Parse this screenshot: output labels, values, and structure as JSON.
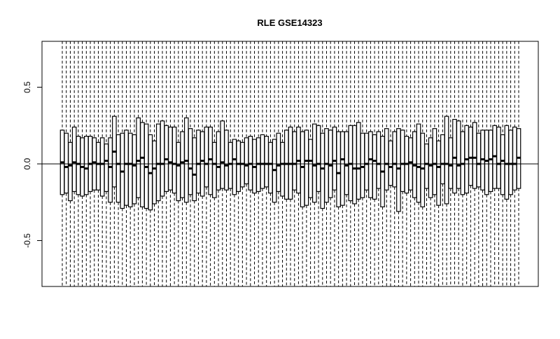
{
  "chart_data": {
    "type": "boxplot",
    "title": "RLE GSE14323",
    "xlabel": "",
    "ylabel": "",
    "ylim": [
      -0.8,
      0.8
    ],
    "yticks": [
      -0.5,
      0.0,
      0.5
    ],
    "ytick_labels": [
      "-0.5",
      "0.0",
      "0.5"
    ],
    "reference_line_y": 0,
    "whisker_ylim": [
      -0.8,
      0.8
    ],
    "n_samples": 115,
    "grid": false,
    "legend": "none",
    "colors": {
      "box": "#000000",
      "background": "#ffffff"
    },
    "median": [
      0.01,
      -0.02,
      -0.01,
      0.01,
      0.0,
      -0.02,
      -0.03,
      0.0,
      0.01,
      0.0,
      0.0,
      0.02,
      -0.02,
      0.08,
      0.0,
      -0.05,
      0.0,
      0.0,
      -0.01,
      0.02,
      0.04,
      -0.02,
      -0.06,
      -0.03,
      0.0,
      0.0,
      0.03,
      0.01,
      0.0,
      -0.01,
      0.01,
      0.02,
      -0.03,
      -0.07,
      0.0,
      0.02,
      0.0,
      0.03,
      0.0,
      -0.02,
      0.01,
      -0.01,
      0.0,
      0.03,
      0.0,
      0.0,
      -0.01,
      0.0,
      -0.02,
      0.0,
      0.0,
      0.0,
      0.0,
      -0.04,
      -0.01,
      0.0,
      0.0,
      0.0,
      0.0,
      0.02,
      -0.02,
      0.02,
      0.02,
      -0.01,
      0.0,
      -0.03,
      0.0,
      -0.01,
      0.02,
      -0.06,
      0.03,
      -0.01,
      0.0,
      -0.03,
      -0.03,
      -0.02,
      0.0,
      0.03,
      0.02,
      0.0,
      -0.05,
      0.0,
      -0.02,
      0.0,
      -0.03,
      0.0,
      0.0,
      0.01,
      -0.01,
      -0.02,
      -0.03,
      0.0,
      -0.01,
      0.0,
      -0.02,
      0.0,
      0.0,
      -0.01,
      0.04,
      -0.01,
      0.0,
      0.03,
      0.04,
      0.04,
      0.0,
      0.03,
      0.02,
      0.03,
      0.05,
      0.0,
      0.02,
      0.0,
      0.0,
      0.0,
      0.04
    ],
    "q1": [
      -0.2,
      -0.19,
      -0.24,
      -0.18,
      -0.2,
      -0.21,
      -0.2,
      -0.18,
      -0.17,
      -0.17,
      -0.21,
      -0.18,
      -0.25,
      -0.15,
      -0.25,
      -0.29,
      -0.27,
      -0.28,
      -0.26,
      -0.22,
      -0.28,
      -0.29,
      -0.3,
      -0.26,
      -0.24,
      -0.21,
      -0.18,
      -0.17,
      -0.19,
      -0.24,
      -0.22,
      -0.25,
      -0.2,
      -0.24,
      -0.19,
      -0.21,
      -0.15,
      -0.2,
      -0.22,
      -0.17,
      -0.16,
      -0.17,
      -0.16,
      -0.2,
      -0.18,
      -0.15,
      -0.13,
      -0.17,
      -0.19,
      -0.18,
      -0.16,
      -0.15,
      -0.19,
      -0.25,
      -0.18,
      -0.21,
      -0.23,
      -0.23,
      -0.17,
      -0.19,
      -0.28,
      -0.27,
      -0.22,
      -0.25,
      -0.18,
      -0.29,
      -0.25,
      -0.22,
      -0.17,
      -0.28,
      -0.27,
      -0.2,
      -0.24,
      -0.26,
      -0.23,
      -0.22,
      -0.17,
      -0.22,
      -0.23,
      -0.16,
      -0.28,
      -0.17,
      -0.14,
      -0.15,
      -0.31,
      -0.18,
      -0.19,
      -0.17,
      -0.22,
      -0.25,
      -0.28,
      -0.16,
      -0.22,
      -0.2,
      -0.27,
      -0.13,
      -0.26,
      -0.16,
      -0.19,
      -0.16,
      -0.2,
      -0.19,
      -0.14,
      -0.16,
      -0.15,
      -0.17,
      -0.2,
      -0.18,
      -0.16,
      -0.16,
      -0.2,
      -0.23,
      -0.2,
      -0.17,
      -0.16
    ],
    "q3": [
      0.22,
      0.2,
      0.14,
      0.24,
      0.18,
      0.17,
      0.18,
      0.18,
      0.17,
      0.14,
      0.17,
      0.13,
      0.17,
      0.31,
      0.19,
      0.2,
      0.22,
      0.2,
      0.19,
      0.3,
      0.27,
      0.26,
      0.19,
      0.15,
      0.26,
      0.28,
      0.25,
      0.24,
      0.24,
      0.14,
      0.21,
      0.3,
      0.23,
      0.17,
      0.22,
      0.21,
      0.24,
      0.24,
      0.14,
      0.21,
      0.28,
      0.22,
      0.14,
      0.16,
      0.15,
      0.14,
      0.17,
      0.18,
      0.16,
      0.17,
      0.19,
      0.18,
      0.14,
      0.16,
      0.2,
      0.14,
      0.22,
      0.24,
      0.21,
      0.24,
      0.21,
      0.22,
      0.16,
      0.26,
      0.25,
      0.2,
      0.23,
      0.22,
      0.24,
      0.21,
      0.21,
      0.21,
      0.25,
      0.25,
      0.27,
      0.2,
      0.2,
      0.21,
      0.19,
      0.21,
      0.18,
      0.23,
      0.15,
      0.21,
      0.23,
      0.22,
      0.18,
      0.17,
      0.21,
      0.26,
      0.2,
      0.13,
      0.17,
      0.23,
      0.15,
      0.19,
      0.31,
      0.17,
      0.29,
      0.28,
      0.21,
      0.25,
      0.24,
      0.27,
      0.2,
      0.22,
      0.22,
      0.22,
      0.25,
      0.24,
      0.19,
      0.25,
      0.22,
      0.24,
      0.23
    ]
  }
}
